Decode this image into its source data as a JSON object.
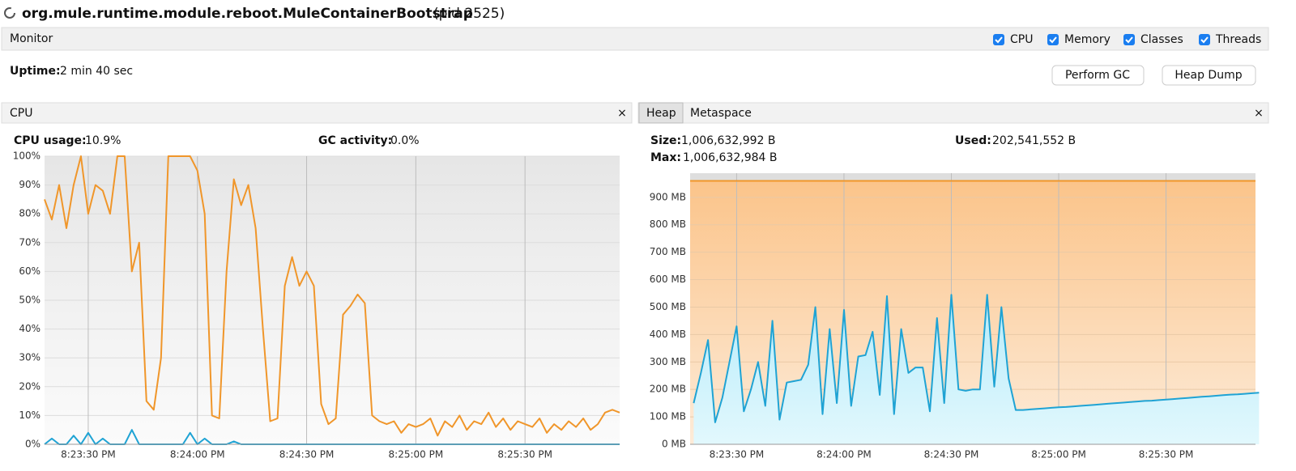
{
  "header": {
    "title": "org.mule.runtime.module.reboot.MuleContainerBootstrap",
    "pid": "(pid 2525)"
  },
  "monitor": {
    "label": "Monitor",
    "checkboxes": [
      "CPU",
      "Memory",
      "Classes",
      "Threads"
    ],
    "uptime_label": "Uptime:",
    "uptime": "2 min 40 sec",
    "buttons": [
      "Perform GC",
      "Heap Dump"
    ]
  },
  "cpu_panel": {
    "title": "CPU",
    "close": "×",
    "usage_label": "CPU usage:",
    "usage": "10.9%",
    "gc_label": "GC activity:",
    "gc": "0.0%"
  },
  "heap_panel": {
    "tabs": [
      "Heap",
      "Metaspace"
    ],
    "close": "×",
    "size_label": "Size:",
    "size": "1,006,632,992 B",
    "used_label": "Used:",
    "used": "202,541,552 B",
    "max_label": "Max:",
    "max": "1,006,632,984 B"
  },
  "chart_data": [
    {
      "type": "line",
      "x": [
        "8:23:18 PM",
        "8:23:20 PM",
        "8:23:22 PM",
        "8:23:24 PM",
        "8:23:26 PM",
        "8:23:28 PM",
        "8:23:30 PM",
        "8:23:32 PM",
        "8:23:34 PM",
        "8:23:36 PM",
        "8:23:38 PM",
        "8:23:40 PM",
        "8:23:42 PM",
        "8:23:44 PM",
        "8:23:46 PM",
        "8:23:48 PM",
        "8:23:50 PM",
        "8:23:52 PM",
        "8:23:54 PM",
        "8:23:56 PM",
        "8:23:58 PM",
        "8:24:00 PM",
        "8:24:02 PM",
        "8:24:04 PM",
        "8:24:06 PM",
        "8:24:08 PM",
        "8:24:10 PM",
        "8:24:12 PM",
        "8:24:14 PM",
        "8:24:16 PM",
        "8:24:18 PM",
        "8:24:20 PM",
        "8:24:22 PM",
        "8:24:24 PM",
        "8:24:26 PM",
        "8:24:28 PM",
        "8:24:30 PM",
        "8:24:32 PM",
        "8:24:34 PM",
        "8:24:36 PM",
        "8:24:38 PM",
        "8:24:40 PM",
        "8:24:42 PM",
        "8:24:44 PM",
        "8:24:46 PM",
        "8:24:48 PM",
        "8:24:50 PM",
        "8:24:52 PM",
        "8:24:54 PM",
        "8:24:56 PM",
        "8:24:58 PM",
        "8:25:00 PM",
        "8:25:02 PM",
        "8:25:04 PM",
        "8:25:06 PM",
        "8:25:08 PM",
        "8:25:10 PM",
        "8:25:12 PM",
        "8:25:14 PM",
        "8:25:16 PM",
        "8:25:18 PM",
        "8:25:20 PM",
        "8:25:22 PM",
        "8:25:24 PM",
        "8:25:26 PM",
        "8:25:28 PM",
        "8:25:30 PM",
        "8:25:32 PM",
        "8:25:34 PM",
        "8:25:36 PM",
        "8:25:38 PM",
        "8:25:40 PM",
        "8:25:42 PM",
        "8:25:44 PM",
        "8:25:46 PM",
        "8:25:48 PM",
        "8:25:50 PM",
        "8:25:52 PM",
        "8:25:54 PM",
        "8:25:56 PM"
      ],
      "series": [
        {
          "color": "#f0962a",
          "values": [
            85,
            78,
            90,
            75,
            90,
            100,
            80,
            90,
            88,
            80,
            100,
            100,
            60,
            70,
            15,
            12,
            30,
            100,
            100,
            100,
            100,
            95,
            80,
            10,
            9,
            60,
            92,
            83,
            90,
            75,
            40,
            8,
            9,
            55,
            65,
            55,
            60,
            55,
            14,
            7,
            9,
            45,
            48,
            52,
            49,
            10,
            8,
            7,
            8,
            4,
            7,
            6,
            7,
            9,
            3,
            8,
            6,
            10,
            5,
            8,
            7,
            11,
            6,
            9,
            5,
            8,
            7,
            6,
            9,
            4,
            7,
            5,
            8,
            6,
            9,
            5,
            7,
            11,
            12,
            11
          ]
        },
        {
          "color": "#1fa3d4",
          "values": [
            0,
            2,
            0,
            0,
            3,
            0,
            4,
            0,
            2,
            0,
            0,
            0,
            5,
            0,
            0,
            0,
            0,
            0,
            0,
            0,
            4,
            0,
            2,
            0,
            0,
            0,
            1,
            0,
            0,
            0,
            0,
            0,
            0,
            0,
            0,
            0,
            0,
            0,
            0,
            0,
            0,
            0,
            0,
            0,
            0,
            0,
            0,
            0,
            0,
            0,
            0,
            0,
            0,
            0,
            0,
            0,
            0,
            0,
            0,
            0,
            0,
            0,
            0,
            0,
            0,
            0,
            0,
            0,
            0,
            0,
            0,
            0,
            0,
            0,
            0,
            0,
            0,
            0,
            0,
            0
          ]
        }
      ],
      "xlim": [
        "8:23:18 PM",
        "8:25:56 PM"
      ],
      "xticks": [
        "8:23:30 PM",
        "8:24:00 PM",
        "8:24:30 PM",
        "8:25:00 PM",
        "8:25:30 PM"
      ],
      "ylim": [
        0,
        100
      ],
      "yticks": [
        {
          "value": 0,
          "label": "0%"
        },
        {
          "value": 10,
          "label": "10%"
        },
        {
          "value": 20,
          "label": "20%"
        },
        {
          "value": 30,
          "label": "30%"
        },
        {
          "value": 40,
          "label": "40%"
        },
        {
          "value": 50,
          "label": "50%"
        },
        {
          "value": 60,
          "label": "60%"
        },
        {
          "value": 70,
          "label": "70%"
        },
        {
          "value": 80,
          "label": "80%"
        },
        {
          "value": 90,
          "label": "90%"
        },
        {
          "value": 100,
          "label": "100%"
        }
      ],
      "grid": true
    },
    {
      "type": "area",
      "x": [
        "8:23:18 PM",
        "8:23:20 PM",
        "8:23:22 PM",
        "8:23:24 PM",
        "8:23:26 PM",
        "8:23:28 PM",
        "8:23:30 PM",
        "8:23:32 PM",
        "8:23:34 PM",
        "8:23:36 PM",
        "8:23:38 PM",
        "8:23:40 PM",
        "8:23:42 PM",
        "8:23:44 PM",
        "8:23:46 PM",
        "8:23:48 PM",
        "8:23:50 PM",
        "8:23:52 PM",
        "8:23:54 PM",
        "8:23:56 PM",
        "8:23:58 PM",
        "8:24:00 PM",
        "8:24:02 PM",
        "8:24:04 PM",
        "8:24:06 PM",
        "8:24:08 PM",
        "8:24:10 PM",
        "8:24:12 PM",
        "8:24:14 PM",
        "8:24:16 PM",
        "8:24:18 PM",
        "8:24:20 PM",
        "8:24:22 PM",
        "8:24:24 PM",
        "8:24:26 PM",
        "8:24:28 PM",
        "8:24:30 PM",
        "8:24:32 PM",
        "8:24:34 PM",
        "8:24:36 PM",
        "8:24:38 PM",
        "8:24:40 PM",
        "8:24:42 PM",
        "8:24:44 PM",
        "8:24:46 PM",
        "8:24:48 PM",
        "8:24:50 PM",
        "8:24:52 PM",
        "8:24:54 PM",
        "8:24:56 PM",
        "8:24:58 PM",
        "8:25:00 PM",
        "8:25:02 PM",
        "8:25:04 PM",
        "8:25:06 PM",
        "8:25:08 PM",
        "8:25:10 PM",
        "8:25:12 PM",
        "8:25:14 PM",
        "8:25:16 PM",
        "8:25:18 PM",
        "8:25:20 PM",
        "8:25:22 PM",
        "8:25:24 PM",
        "8:25:26 PM",
        "8:25:28 PM",
        "8:25:30 PM",
        "8:25:32 PM",
        "8:25:34 PM",
        "8:25:36 PM",
        "8:25:38 PM",
        "8:25:40 PM",
        "8:25:42 PM",
        "8:25:44 PM",
        "8:25:46 PM",
        "8:25:48 PM",
        "8:25:50 PM",
        "8:25:52 PM",
        "8:25:54 PM",
        "8:25:56 PM"
      ],
      "limit": 960,
      "limit_color": "#f0962a",
      "color": "#1fa3d4",
      "values": [
        150,
        260,
        380,
        80,
        170,
        300,
        430,
        120,
        200,
        300,
        140,
        450,
        90,
        225,
        230,
        235,
        290,
        500,
        110,
        420,
        150,
        490,
        140,
        320,
        325,
        410,
        180,
        540,
        110,
        420,
        260,
        280,
        280,
        120,
        460,
        150,
        545,
        200,
        195,
        200,
        200,
        545,
        210,
        500,
        240,
        125,
        125,
        127,
        129,
        131,
        133,
        135,
        136,
        138,
        140,
        142,
        144,
        146,
        148,
        150,
        152,
        154,
        156,
        158,
        159,
        161,
        163,
        165,
        167,
        169,
        171,
        173,
        175,
        177,
        179,
        181,
        182,
        184,
        186,
        188
      ],
      "xlim": [
        "8:23:17 PM",
        "8:25:55 PM"
      ],
      "xticks": [
        "8:23:30 PM",
        "8:24:00 PM",
        "8:24:30 PM",
        "8:25:00 PM",
        "8:25:30 PM"
      ],
      "ylim": [
        0,
        988
      ],
      "yticks": [
        {
          "value": 0,
          "label": "0 MB"
        },
        {
          "value": 100,
          "label": "100 MB"
        },
        {
          "value": 200,
          "label": "200 MB"
        },
        {
          "value": 300,
          "label": "300 MB"
        },
        {
          "value": 400,
          "label": "400 MB"
        },
        {
          "value": 500,
          "label": "500 MB"
        },
        {
          "value": 600,
          "label": "600 MB"
        },
        {
          "value": 700,
          "label": "700 MB"
        },
        {
          "value": 800,
          "label": "800 MB"
        },
        {
          "value": 900,
          "label": "900 MB"
        }
      ],
      "grid": true
    }
  ]
}
